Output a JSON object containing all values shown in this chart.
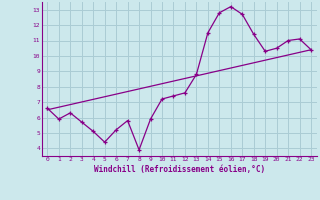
{
  "xlabel": "Windchill (Refroidissement éolien,°C)",
  "bg_color": "#cce8ec",
  "grid_color": "#aaccd4",
  "line_color": "#880088",
  "xlim": [
    -0.5,
    23.5
  ],
  "ylim": [
    3.5,
    13.5
  ],
  "xticks": [
    0,
    1,
    2,
    3,
    4,
    5,
    6,
    7,
    8,
    9,
    10,
    11,
    12,
    13,
    14,
    15,
    16,
    17,
    18,
    19,
    20,
    21,
    22,
    23
  ],
  "yticks": [
    4,
    5,
    6,
    7,
    8,
    9,
    10,
    11,
    12,
    13
  ],
  "series": [
    [
      0,
      6.6
    ],
    [
      1,
      5.9
    ],
    [
      2,
      6.3
    ],
    [
      3,
      5.7
    ],
    [
      4,
      5.1
    ],
    [
      5,
      4.4
    ],
    [
      6,
      5.2
    ],
    [
      7,
      5.8
    ],
    [
      8,
      3.9
    ],
    [
      9,
      5.9
    ],
    [
      10,
      7.2
    ],
    [
      11,
      7.4
    ],
    [
      12,
      7.6
    ],
    [
      13,
      8.8
    ],
    [
      14,
      11.5
    ],
    [
      15,
      12.8
    ],
    [
      16,
      13.2
    ],
    [
      17,
      12.7
    ],
    [
      18,
      11.4
    ],
    [
      19,
      10.3
    ],
    [
      20,
      10.5
    ],
    [
      21,
      11.0
    ],
    [
      22,
      11.1
    ],
    [
      23,
      10.4
    ]
  ],
  "ref_line": [
    [
      0,
      6.5
    ],
    [
      23,
      10.4
    ]
  ]
}
